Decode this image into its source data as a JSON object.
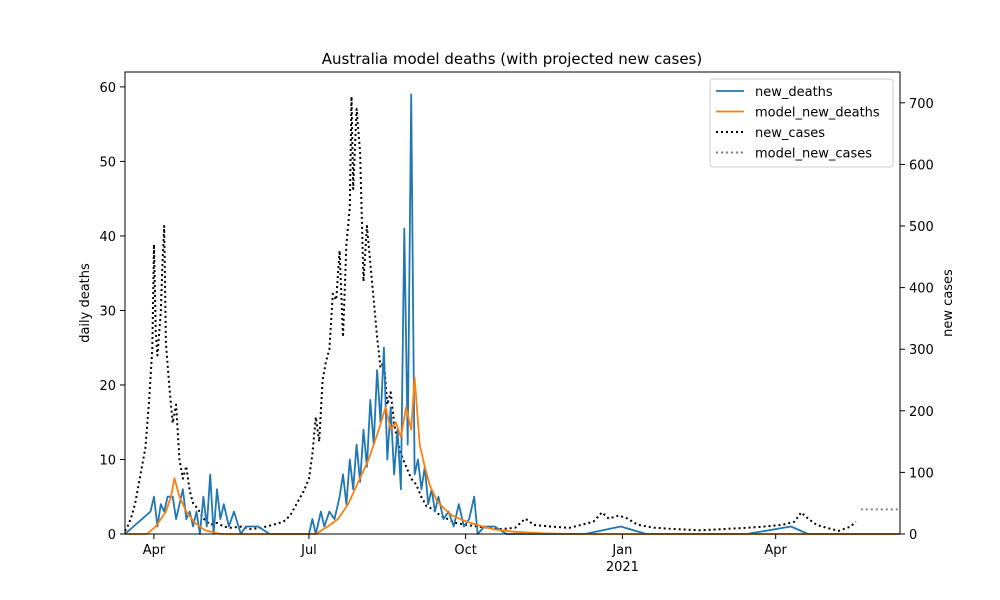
{
  "chart_data": {
    "type": "line",
    "title": "Australia model deaths (with projected new cases)",
    "ylabel_left": "daily deaths",
    "ylabel_right": "new cases",
    "xlim": [
      "2020-03-15",
      "2021-06-13"
    ],
    "ylim_left": [
      0,
      62
    ],
    "ylim_right": [
      0,
      750
    ],
    "x_ticks": [
      {
        "date": "2020-04-01",
        "label": "Apr"
      },
      {
        "date": "2020-07-01",
        "label": "Jul"
      },
      {
        "date": "2020-10-01",
        "label": "Oct"
      },
      {
        "date": "2021-01-01",
        "label": "Jan",
        "sublabel": "2021"
      },
      {
        "date": "2021-04-01",
        "label": "Apr"
      }
    ],
    "y_ticks_left": [
      0,
      10,
      20,
      30,
      40,
      50,
      60
    ],
    "y_ticks_right": [
      0,
      100,
      200,
      300,
      400,
      500,
      600,
      700
    ],
    "legend_position": "top-right",
    "series": [
      {
        "name": "new_deaths",
        "axis": "left",
        "color": "#1f77b4",
        "style": "solid",
        "points": [
          [
            "2020-03-15",
            0
          ],
          [
            "2020-03-20",
            1
          ],
          [
            "2020-03-25",
            2
          ],
          [
            "2020-03-30",
            3
          ],
          [
            "2020-04-01",
            5
          ],
          [
            "2020-04-03",
            1
          ],
          [
            "2020-04-05",
            4
          ],
          [
            "2020-04-07",
            3
          ],
          [
            "2020-04-09",
            5
          ],
          [
            "2020-04-12",
            5
          ],
          [
            "2020-04-14",
            2
          ],
          [
            "2020-04-16",
            4
          ],
          [
            "2020-04-18",
            6
          ],
          [
            "2020-04-20",
            2
          ],
          [
            "2020-04-22",
            3
          ],
          [
            "2020-04-24",
            1
          ],
          [
            "2020-04-26",
            3
          ],
          [
            "2020-04-28",
            0
          ],
          [
            "2020-04-30",
            5
          ],
          [
            "2020-05-02",
            1
          ],
          [
            "2020-05-04",
            8
          ],
          [
            "2020-05-06",
            0
          ],
          [
            "2020-05-08",
            6
          ],
          [
            "2020-05-10",
            2
          ],
          [
            "2020-05-12",
            4
          ],
          [
            "2020-05-15",
            1
          ],
          [
            "2020-05-18",
            3
          ],
          [
            "2020-05-22",
            0
          ],
          [
            "2020-05-25",
            1
          ],
          [
            "2020-06-01",
            1
          ],
          [
            "2020-06-08",
            0
          ],
          [
            "2020-06-15",
            0
          ],
          [
            "2020-06-25",
            0
          ],
          [
            "2020-07-01",
            0
          ],
          [
            "2020-07-03",
            2
          ],
          [
            "2020-07-05",
            0
          ],
          [
            "2020-07-08",
            3
          ],
          [
            "2020-07-10",
            1
          ],
          [
            "2020-07-13",
            3
          ],
          [
            "2020-07-16",
            2
          ],
          [
            "2020-07-19",
            5
          ],
          [
            "2020-07-21",
            8
          ],
          [
            "2020-07-23",
            4
          ],
          [
            "2020-07-25",
            10
          ],
          [
            "2020-07-27",
            6
          ],
          [
            "2020-07-29",
            12
          ],
          [
            "2020-07-31",
            7
          ],
          [
            "2020-08-02",
            14
          ],
          [
            "2020-08-04",
            9
          ],
          [
            "2020-08-06",
            18
          ],
          [
            "2020-08-08",
            12
          ],
          [
            "2020-08-10",
            22
          ],
          [
            "2020-08-12",
            15
          ],
          [
            "2020-08-14",
            25
          ],
          [
            "2020-08-16",
            10
          ],
          [
            "2020-08-18",
            17
          ],
          [
            "2020-08-20",
            8
          ],
          [
            "2020-08-22",
            14
          ],
          [
            "2020-08-24",
            6
          ],
          [
            "2020-08-26",
            41
          ],
          [
            "2020-08-28",
            12
          ],
          [
            "2020-08-30",
            59
          ],
          [
            "2020-09-01",
            8
          ],
          [
            "2020-09-03",
            10
          ],
          [
            "2020-09-05",
            6
          ],
          [
            "2020-09-07",
            9
          ],
          [
            "2020-09-09",
            4
          ],
          [
            "2020-09-11",
            6
          ],
          [
            "2020-09-13",
            3
          ],
          [
            "2020-09-15",
            5
          ],
          [
            "2020-09-18",
            2
          ],
          [
            "2020-09-21",
            3
          ],
          [
            "2020-09-24",
            1
          ],
          [
            "2020-09-27",
            4
          ],
          [
            "2020-09-30",
            1
          ],
          [
            "2020-10-03",
            2
          ],
          [
            "2020-10-06",
            5
          ],
          [
            "2020-10-08",
            0
          ],
          [
            "2020-10-12",
            1
          ],
          [
            "2020-10-18",
            1
          ],
          [
            "2020-10-25",
            0
          ],
          [
            "2020-11-05",
            0
          ],
          [
            "2020-11-20",
            0
          ],
          [
            "2020-12-10",
            0
          ],
          [
            "2020-12-31",
            1
          ],
          [
            "2021-01-15",
            0
          ],
          [
            "2021-02-15",
            0
          ],
          [
            "2021-03-15",
            0
          ],
          [
            "2021-04-10",
            1
          ],
          [
            "2021-04-20",
            0
          ],
          [
            "2021-06-13",
            0
          ]
        ]
      },
      {
        "name": "model_new_deaths",
        "axis": "left",
        "color": "#ff7f0e",
        "style": "solid",
        "points": [
          [
            "2020-03-15",
            0
          ],
          [
            "2020-03-28",
            0
          ],
          [
            "2020-04-02",
            1
          ],
          [
            "2020-04-08",
            3
          ],
          [
            "2020-04-11",
            5
          ],
          [
            "2020-04-13",
            7.5
          ],
          [
            "2020-04-16",
            5
          ],
          [
            "2020-04-20",
            3
          ],
          [
            "2020-04-25",
            1.5
          ],
          [
            "2020-05-01",
            0.5
          ],
          [
            "2020-05-10",
            0
          ],
          [
            "2020-06-20",
            0
          ],
          [
            "2020-07-05",
            0
          ],
          [
            "2020-07-12",
            1
          ],
          [
            "2020-07-18",
            2
          ],
          [
            "2020-07-24",
            4
          ],
          [
            "2020-07-30",
            7
          ],
          [
            "2020-08-05",
            10
          ],
          [
            "2020-08-11",
            14
          ],
          [
            "2020-08-15",
            17
          ],
          [
            "2020-08-18",
            14
          ],
          [
            "2020-08-21",
            15
          ],
          [
            "2020-08-24",
            13
          ],
          [
            "2020-08-27",
            17
          ],
          [
            "2020-08-30",
            14
          ],
          [
            "2020-09-01",
            21
          ],
          [
            "2020-09-04",
            12
          ],
          [
            "2020-09-07",
            9
          ],
          [
            "2020-09-10",
            6.5
          ],
          [
            "2020-09-14",
            4.5
          ],
          [
            "2020-09-18",
            3.5
          ],
          [
            "2020-09-23",
            2.5
          ],
          [
            "2020-09-30",
            1.8
          ],
          [
            "2020-10-08",
            1.2
          ],
          [
            "2020-10-18",
            0.6
          ],
          [
            "2020-10-30",
            0.3
          ],
          [
            "2020-11-15",
            0.1
          ],
          [
            "2020-12-01",
            0
          ],
          [
            "2021-06-13",
            0
          ]
        ]
      },
      {
        "name": "new_cases",
        "axis": "right",
        "color": "#000000",
        "style": "dotted",
        "points": [
          [
            "2020-03-15",
            5
          ],
          [
            "2020-03-17",
            15
          ],
          [
            "2020-03-19",
            30
          ],
          [
            "2020-03-21",
            50
          ],
          [
            "2020-03-23",
            80
          ],
          [
            "2020-03-25",
            110
          ],
          [
            "2020-03-27",
            140
          ],
          [
            "2020-03-29",
            210
          ],
          [
            "2020-03-31",
            300
          ],
          [
            "2020-04-01",
            470
          ],
          [
            "2020-04-02",
            330
          ],
          [
            "2020-04-03",
            290
          ],
          [
            "2020-04-05",
            360
          ],
          [
            "2020-04-06",
            440
          ],
          [
            "2020-04-07",
            500
          ],
          [
            "2020-04-08",
            310
          ],
          [
            "2020-04-10",
            240
          ],
          [
            "2020-04-12",
            180
          ],
          [
            "2020-04-14",
            210
          ],
          [
            "2020-04-16",
            120
          ],
          [
            "2020-04-18",
            90
          ],
          [
            "2020-04-20",
            110
          ],
          [
            "2020-04-22",
            70
          ],
          [
            "2020-04-24",
            50
          ],
          [
            "2020-04-27",
            40
          ],
          [
            "2020-04-30",
            25
          ],
          [
            "2020-05-04",
            15
          ],
          [
            "2020-05-08",
            18
          ],
          [
            "2020-05-12",
            12
          ],
          [
            "2020-05-16",
            10
          ],
          [
            "2020-05-22",
            12
          ],
          [
            "2020-05-28",
            8
          ],
          [
            "2020-06-03",
            10
          ],
          [
            "2020-06-10",
            15
          ],
          [
            "2020-06-16",
            20
          ],
          [
            "2020-06-20",
            30
          ],
          [
            "2020-06-24",
            50
          ],
          [
            "2020-06-28",
            70
          ],
          [
            "2020-07-01",
            90
          ],
          [
            "2020-07-03",
            130
          ],
          [
            "2020-07-05",
            190
          ],
          [
            "2020-07-07",
            150
          ],
          [
            "2020-07-09",
            250
          ],
          [
            "2020-07-11",
            280
          ],
          [
            "2020-07-13",
            300
          ],
          [
            "2020-07-15",
            390
          ],
          [
            "2020-07-17",
            380
          ],
          [
            "2020-07-19",
            460
          ],
          [
            "2020-07-21",
            320
          ],
          [
            "2020-07-23",
            470
          ],
          [
            "2020-07-25",
            530
          ],
          [
            "2020-07-26",
            710
          ],
          [
            "2020-07-27",
            560
          ],
          [
            "2020-07-29",
            690
          ],
          [
            "2020-07-31",
            620
          ],
          [
            "2020-08-02",
            410
          ],
          [
            "2020-08-04",
            500
          ],
          [
            "2020-08-06",
            440
          ],
          [
            "2020-08-08",
            380
          ],
          [
            "2020-08-10",
            320
          ],
          [
            "2020-08-12",
            270
          ],
          [
            "2020-08-14",
            280
          ],
          [
            "2020-08-16",
            210
          ],
          [
            "2020-08-18",
            230
          ],
          [
            "2020-08-20",
            180
          ],
          [
            "2020-08-22",
            150
          ],
          [
            "2020-08-24",
            130
          ],
          [
            "2020-08-27",
            110
          ],
          [
            "2020-08-30",
            90
          ],
          [
            "2020-09-02",
            80
          ],
          [
            "2020-09-05",
            60
          ],
          [
            "2020-09-08",
            45
          ],
          [
            "2020-09-12",
            40
          ],
          [
            "2020-09-16",
            30
          ],
          [
            "2020-09-20",
            25
          ],
          [
            "2020-09-25",
            18
          ],
          [
            "2020-10-01",
            15
          ],
          [
            "2020-10-08",
            12
          ],
          [
            "2020-10-15",
            10
          ],
          [
            "2020-10-22",
            8
          ],
          [
            "2020-10-30",
            10
          ],
          [
            "2020-11-05",
            25
          ],
          [
            "2020-11-10",
            15
          ],
          [
            "2020-11-20",
            12
          ],
          [
            "2020-12-01",
            10
          ],
          [
            "2020-12-08",
            15
          ],
          [
            "2020-12-15",
            20
          ],
          [
            "2020-12-20",
            35
          ],
          [
            "2020-12-24",
            25
          ],
          [
            "2020-12-30",
            30
          ],
          [
            "2021-01-04",
            25
          ],
          [
            "2021-01-10",
            15
          ],
          [
            "2021-01-20",
            10
          ],
          [
            "2021-02-01",
            8
          ],
          [
            "2021-02-15",
            6
          ],
          [
            "2021-03-01",
            8
          ],
          [
            "2021-03-15",
            10
          ],
          [
            "2021-03-25",
            12
          ],
          [
            "2021-04-05",
            15
          ],
          [
            "2021-04-12",
            20
          ],
          [
            "2021-04-16",
            35
          ],
          [
            "2021-04-20",
            25
          ],
          [
            "2021-04-25",
            15
          ],
          [
            "2021-05-01",
            10
          ],
          [
            "2021-05-08",
            5
          ],
          [
            "2021-05-15",
            12
          ],
          [
            "2021-05-18",
            20
          ]
        ]
      },
      {
        "name": "model_new_cases",
        "axis": "right",
        "color": "#808080",
        "style": "dotted",
        "points": [
          [
            "2021-05-21",
            40
          ],
          [
            "2021-06-13",
            40
          ]
        ]
      }
    ]
  }
}
